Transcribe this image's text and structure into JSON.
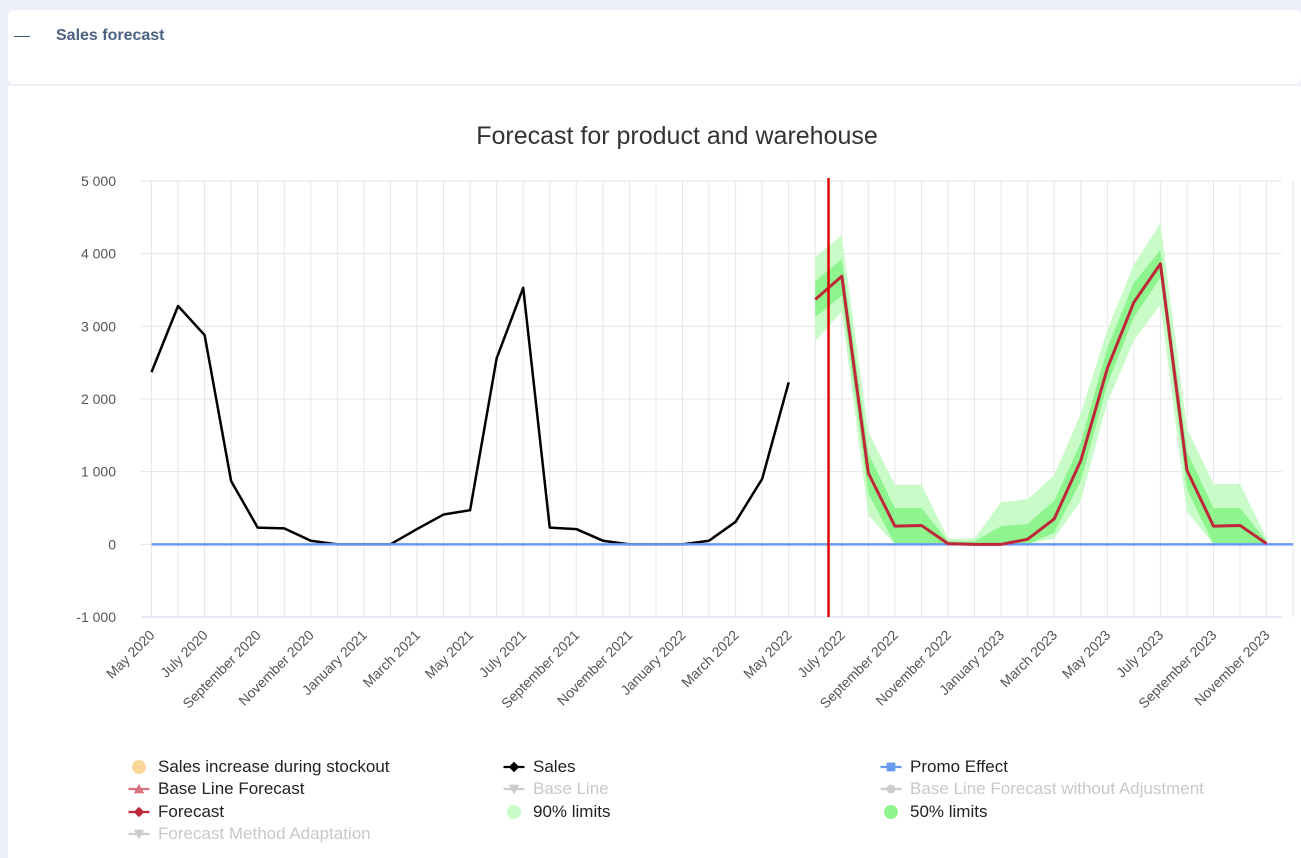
{
  "panel": {
    "title": "Sales forecast",
    "collapse_icon": "minus-icon"
  },
  "chart_data": {
    "type": "line",
    "title": "Forecast for product and warehouse",
    "ylim": [
      -1000,
      5000
    ],
    "y_ticks": [
      5000,
      4000,
      3000,
      2000,
      1000,
      0,
      -1000
    ],
    "y_tick_labels": [
      "5 000",
      "4 000",
      "3 000",
      "2 000",
      "1 000",
      "0",
      "-1 000"
    ],
    "x_labels": [
      "May 2020",
      "July 2020",
      "September 2020",
      "November 2020",
      "January 2021",
      "March 2021",
      "May 2021",
      "July 2021",
      "September 2021",
      "November 2021",
      "January 2022",
      "March 2022",
      "May 2022",
      "July 2022",
      "September 2022",
      "November 2022",
      "January 2023",
      "March 2023",
      "May 2023",
      "July 2023",
      "September 2023",
      "November 2023"
    ],
    "forecast_start_index": 25.5,
    "series": [
      {
        "name": "Sales",
        "color": "#000000",
        "values": [
          2370,
          3280,
          2880,
          870,
          230,
          220,
          50,
          0,
          0,
          0,
          210,
          410,
          470,
          2560,
          3530,
          230,
          210,
          50,
          0,
          0,
          0,
          50,
          310,
          900,
          2230
        ]
      },
      {
        "name": "Promo Effect",
        "color": "#6a9af0",
        "start": 0,
        "values": [
          0,
          0,
          0,
          0,
          0,
          0,
          0,
          0,
          0,
          0,
          0,
          0,
          0,
          0,
          0,
          0,
          0,
          0,
          0,
          0,
          0,
          0,
          0,
          0,
          0,
          0,
          0,
          0,
          0,
          0,
          0,
          0,
          0,
          0,
          0,
          0,
          0,
          0,
          0,
          0,
          0,
          0,
          0,
          0
        ]
      },
      {
        "name": "Forecast",
        "color": "#c0263a",
        "start": 25,
        "values": [
          3370,
          3690,
          980,
          250,
          260,
          10,
          0,
          0,
          70,
          350,
          1150,
          2420,
          3330,
          3860,
          1020,
          250,
          260,
          10
        ]
      }
    ],
    "bands": [
      {
        "name": "90% limits",
        "color": "#c9fbc9",
        "start": 25,
        "lower": [
          2800,
          3200,
          400,
          0,
          0,
          0,
          0,
          0,
          0,
          80,
          600,
          1950,
          2800,
          3300,
          450,
          0,
          0,
          0
        ],
        "upper": [
          3950,
          4250,
          1550,
          820,
          820,
          80,
          80,
          580,
          620,
          950,
          1800,
          2950,
          3850,
          4420,
          1600,
          830,
          830,
          80
        ]
      },
      {
        "name": "50% limits",
        "color": "#8ef58e",
        "start": 25,
        "lower": [
          3130,
          3420,
          700,
          0,
          0,
          0,
          0,
          0,
          0,
          160,
          870,
          2200,
          3120,
          3670,
          760,
          0,
          0,
          0
        ],
        "upper": [
          3620,
          3930,
          1250,
          500,
          500,
          40,
          40,
          250,
          280,
          600,
          1400,
          2700,
          3600,
          4050,
          1280,
          500,
          500,
          40
        ]
      }
    ],
    "legend": [
      {
        "name": "Sales increase during stockout",
        "symbol": "circle",
        "color": "#fcd79a",
        "enabled": true
      },
      {
        "name": "Sales",
        "symbol": "line-diamond",
        "color": "#000000",
        "enabled": true
      },
      {
        "name": "Promo Effect",
        "symbol": "line-square",
        "color": "#6a9af0",
        "enabled": true
      },
      {
        "name": "Base Line Forecast",
        "symbol": "line-triangle",
        "color": "#d9737f",
        "enabled": true
      },
      {
        "name": "Base Line",
        "symbol": "line-triangle-down",
        "color": "#cccccc",
        "enabled": false
      },
      {
        "name": "Base Line Forecast without Adjustment",
        "symbol": "line-circle",
        "color": "#cccccc",
        "enabled": false
      },
      {
        "name": "Forecast",
        "symbol": "line-diamond",
        "color": "#c0263a",
        "enabled": true
      },
      {
        "name": "90% limits",
        "symbol": "circle",
        "color": "#c9fbc9",
        "enabled": true
      },
      {
        "name": "50% limits",
        "symbol": "circle",
        "color": "#8ef58e",
        "enabled": true
      },
      {
        "name": "Forecast Method Adaptation",
        "symbol": "line-triangle-down",
        "color": "#cccccc",
        "enabled": false
      }
    ]
  }
}
